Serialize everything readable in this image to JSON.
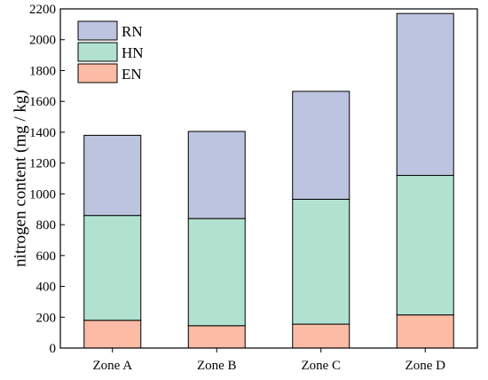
{
  "chart_data": {
    "type": "bar",
    "stacked": true,
    "categories": [
      "Zone A",
      "Zone B",
      "Zone C",
      "Zone D"
    ],
    "series": [
      {
        "name": "EN",
        "values": [
          180,
          145,
          155,
          215
        ],
        "color": "#fbbba4"
      },
      {
        "name": "HN",
        "values": [
          680,
          695,
          810,
          905
        ],
        "color": "#b1e2d0"
      },
      {
        "name": "RN",
        "values": [
          520,
          565,
          700,
          1050
        ],
        "color": "#bcc4e0"
      }
    ],
    "title": "",
    "xlabel": "",
    "ylabel": "nitrogen content (mg / kg)",
    "ylim": [
      0,
      2200
    ],
    "yticks": [
      "0",
      "200",
      "400",
      "600",
      "800",
      "1000",
      "1200",
      "1400",
      "1600",
      "1800",
      "2000",
      "2200"
    ],
    "legend": {
      "placement": "top-left",
      "order": [
        "RN",
        "HN",
        "EN"
      ]
    },
    "grid": false
  }
}
